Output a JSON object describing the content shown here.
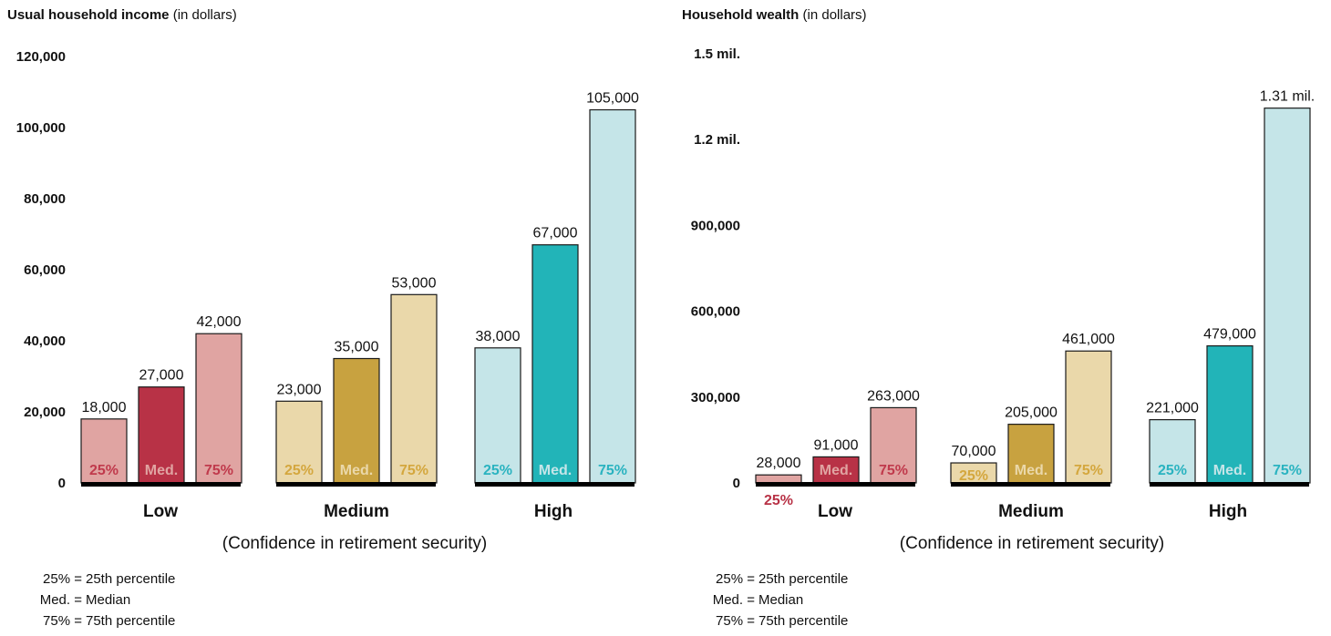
{
  "chart_data": [
    {
      "type": "bar",
      "title": "Usual household income",
      "title_unit": "(in dollars)",
      "xlabel": "(Confidence in retirement security)",
      "ylim": [
        0,
        120000
      ],
      "yticks": [
        0,
        20000,
        40000,
        60000,
        80000,
        100000,
        120000
      ],
      "ytick_labels": [
        "0",
        "20,000",
        "40,000",
        "60,000",
        "80,000",
        "100,000",
        "120,000"
      ],
      "groups": [
        {
          "name": "Low",
          "bars": [
            {
              "stat": "25%",
              "value": 18000,
              "label": "18,000"
            },
            {
              "stat": "Med.",
              "value": 27000,
              "label": "27,000"
            },
            {
              "stat": "75%",
              "value": 42000,
              "label": "42,000"
            }
          ]
        },
        {
          "name": "Medium",
          "bars": [
            {
              "stat": "25%",
              "value": 23000,
              "label": "23,000"
            },
            {
              "stat": "Med.",
              "value": 35000,
              "label": "35,000"
            },
            {
              "stat": "75%",
              "value": 53000,
              "label": "53,000"
            }
          ]
        },
        {
          "name": "High",
          "bars": [
            {
              "stat": "25%",
              "value": 38000,
              "label": "38,000"
            },
            {
              "stat": "Med.",
              "value": 67000,
              "label": "67,000"
            },
            {
              "stat": "75%",
              "value": 105000,
              "label": "105,000"
            }
          ]
        }
      ]
    },
    {
      "type": "bar",
      "title": "Household wealth",
      "title_unit": "(in dollars)",
      "xlabel": "(Confidence in retirement security)",
      "ylim": [
        0,
        1500000
      ],
      "yticks": [
        0,
        300000,
        600000,
        900000,
        1200000,
        1500000
      ],
      "ytick_labels": [
        "0",
        "300,000",
        "600,000",
        "900,000",
        "1.2 mil.",
        "1.5 mil."
      ],
      "groups": [
        {
          "name": "Low",
          "bars": [
            {
              "stat": "25%",
              "value": 28000,
              "label": "28,000"
            },
            {
              "stat": "Med.",
              "value": 91000,
              "label": "91,000"
            },
            {
              "stat": "75%",
              "value": 263000,
              "label": "263,000"
            }
          ]
        },
        {
          "name": "Medium",
          "bars": [
            {
              "stat": "25%",
              "value": 70000,
              "label": "70,000"
            },
            {
              "stat": "Med.",
              "value": 205000,
              "label": "205,000"
            },
            {
              "stat": "75%",
              "value": 461000,
              "label": "461,000"
            }
          ]
        },
        {
          "name": "High",
          "bars": [
            {
              "stat": "25%",
              "value": 221000,
              "label": "221,000"
            },
            {
              "stat": "Med.",
              "value": 479000,
              "label": "479,000"
            },
            {
              "stat": "75%",
              "value": 1310000,
              "label": "1.31 mil."
            }
          ]
        }
      ]
    }
  ],
  "colors": {
    "Low": {
      "light": "#e0a4a2",
      "dark": "#b83246",
      "text": "#c03a4c"
    },
    "Medium": {
      "light": "#ead8aa",
      "dark": "#c8a240",
      "text": "#d4a73e"
    },
    "High": {
      "light": "#c5e5e8",
      "dark": "#22b4b8",
      "text": "#2ab3c0"
    },
    "axis": "#000000"
  },
  "legend": [
    {
      "key": "25% =",
      "text": "25th percentile"
    },
    {
      "key": "Med. =",
      "text": "Median"
    },
    {
      "key": "75% =",
      "text": "75th percentile"
    }
  ]
}
